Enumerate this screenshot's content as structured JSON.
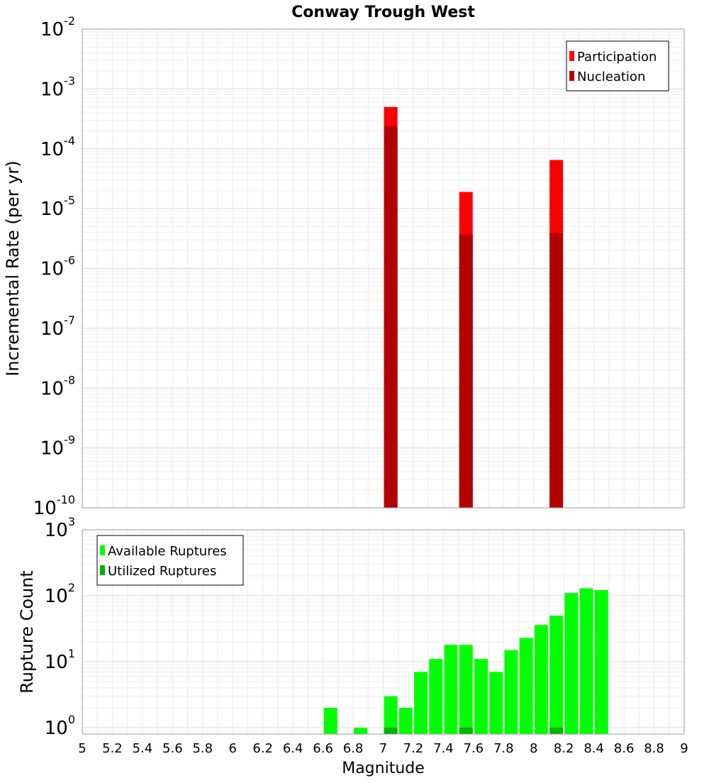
{
  "chart_data": [
    {
      "type": "bar",
      "title": "Conway Trough West",
      "ylabel": "Incremental Rate (per yr)",
      "xlabel": "",
      "xlim": [
        5,
        9
      ],
      "ylim": [
        1e-10,
        0.01
      ],
      "yscale": "log",
      "yticks": [
        {
          "base": "10",
          "exp": "-10",
          "value": 1e-10
        },
        {
          "base": "10",
          "exp": "-9",
          "value": 1e-09
        },
        {
          "base": "10",
          "exp": "-8",
          "value": 1e-08
        },
        {
          "base": "10",
          "exp": "-7",
          "value": 1e-07
        },
        {
          "base": "10",
          "exp": "-6",
          "value": 1e-06
        },
        {
          "base": "10",
          "exp": "-5",
          "value": 1e-05
        },
        {
          "base": "10",
          "exp": "-4",
          "value": 0.0001
        },
        {
          "base": "10",
          "exp": "-3",
          "value": 0.001
        },
        {
          "base": "10",
          "exp": "-2",
          "value": 0.01
        }
      ],
      "grid": true,
      "legend_position": "top-right",
      "series": [
        {
          "name": "Participation",
          "color": "#ff0000",
          "x": [
            7.05,
            7.55,
            8.15
          ],
          "values": [
            0.0005,
            1.9e-05,
            6.5e-05
          ]
        },
        {
          "name": "Nucleation",
          "color": "#b30000",
          "x": [
            7.05,
            7.55,
            8.15
          ],
          "values": [
            0.00024,
            3.7e-06,
            3.9e-06
          ]
        }
      ]
    },
    {
      "type": "bar",
      "title": "",
      "ylabel": "Rupture Count",
      "xlabel": "Magnitude",
      "xlim": [
        5,
        9
      ],
      "ylim": [
        0.8,
        1000
      ],
      "yscale": "log",
      "yticks": [
        {
          "base": "10",
          "exp": "0",
          "value": 1
        },
        {
          "base": "10",
          "exp": "1",
          "value": 10
        },
        {
          "base": "10",
          "exp": "2",
          "value": 100
        },
        {
          "base": "10",
          "exp": "3",
          "value": 1000
        }
      ],
      "xticks": [
        "5",
        "5.2",
        "5.4",
        "5.6",
        "5.8",
        "6",
        "6.2",
        "6.4",
        "6.6",
        "6.8",
        "7",
        "7.2",
        "7.4",
        "7.6",
        "7.8",
        "8",
        "8.2",
        "8.4",
        "8.6",
        "8.8",
        "9"
      ],
      "grid": true,
      "legend_position": "top-left",
      "series": [
        {
          "name": "Available Ruptures",
          "color": "#00ff00",
          "x": [
            6.65,
            6.85,
            7.05,
            7.15,
            7.25,
            7.35,
            7.45,
            7.55,
            7.65,
            7.75,
            7.85,
            7.95,
            8.05,
            8.15,
            8.25,
            8.35,
            8.45
          ],
          "values": [
            2,
            1,
            3,
            2,
            7,
            11,
            18,
            18,
            11,
            7,
            15,
            23,
            36,
            50,
            110,
            130,
            122
          ]
        },
        {
          "name": "Utilized Ruptures",
          "color": "#00b300",
          "x": [
            7.05,
            7.55,
            8.15
          ],
          "values": [
            1,
            1,
            1
          ]
        }
      ]
    }
  ]
}
